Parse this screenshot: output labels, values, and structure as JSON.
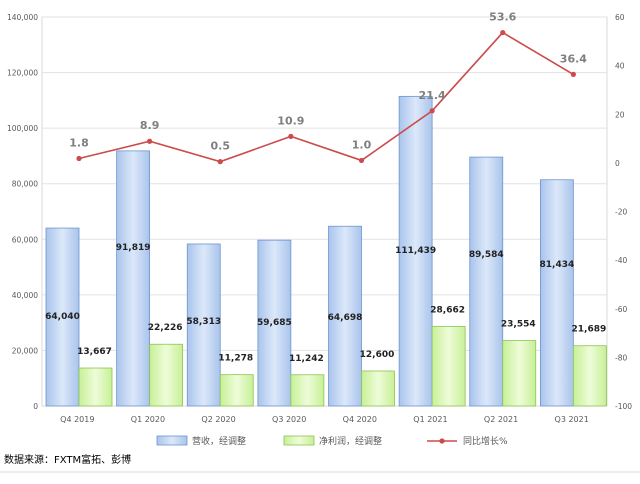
{
  "source_note": "数据来源：FXTM富拓、彭博",
  "chart_data": {
    "type": "bar+line",
    "categories": [
      "Q4 2019",
      "Q1 2020",
      "Q2 2020",
      "Q3 2020",
      "Q4 2020",
      "Q1 2021",
      "Q2 2021",
      "Q3 2021"
    ],
    "series": [
      {
        "name": "营收，经调整",
        "type": "bar",
        "axis": "left",
        "values": [
          64040,
          91819,
          58313,
          59685,
          64698,
          111439,
          89584,
          81434
        ],
        "labels": [
          "64,040",
          "91,819",
          "58,313",
          "59,685",
          "64,698",
          "111,439",
          "89,584",
          "81,434"
        ]
      },
      {
        "name": "净利润，经调整",
        "type": "bar",
        "axis": "left",
        "values": [
          13667,
          22226,
          11278,
          11242,
          12600,
          28662,
          23554,
          21689
        ],
        "labels": [
          "13,667",
          "22,226",
          "11,278",
          "11,242",
          "12,600",
          "28,662",
          "23,554",
          "21,689"
        ]
      },
      {
        "name": "同比增长%",
        "type": "line",
        "axis": "right",
        "values": [
          1.8,
          8.9,
          0.5,
          10.9,
          1.0,
          21.4,
          53.6,
          36.4
        ],
        "labels": [
          "1.8",
          "8.9",
          "0.5",
          "10.9",
          "1.0",
          "21.4",
          "53.6",
          "36.4"
        ]
      }
    ],
    "y_left": {
      "min": 0,
      "max": 140000,
      "ticks": [
        "0",
        "20,000",
        "40,000",
        "60,000",
        "80,000",
        "100,000",
        "120,000",
        "140,000"
      ]
    },
    "y_right": {
      "min": -100,
      "max": 60,
      "ticks": [
        "-100",
        "-80",
        "-60",
        "-40",
        "-20",
        "0",
        "20",
        "40",
        "60"
      ]
    },
    "grid": true,
    "legend_position": "bottom",
    "colors": {
      "revenue_fill": "#bdd3f2",
      "revenue_stroke": "#6e95cf",
      "profit_fill": "#dcf7b4",
      "profit_stroke": "#8cc454",
      "growth_line": "#cc4b4b",
      "grid": "#e2e2e2"
    }
  }
}
